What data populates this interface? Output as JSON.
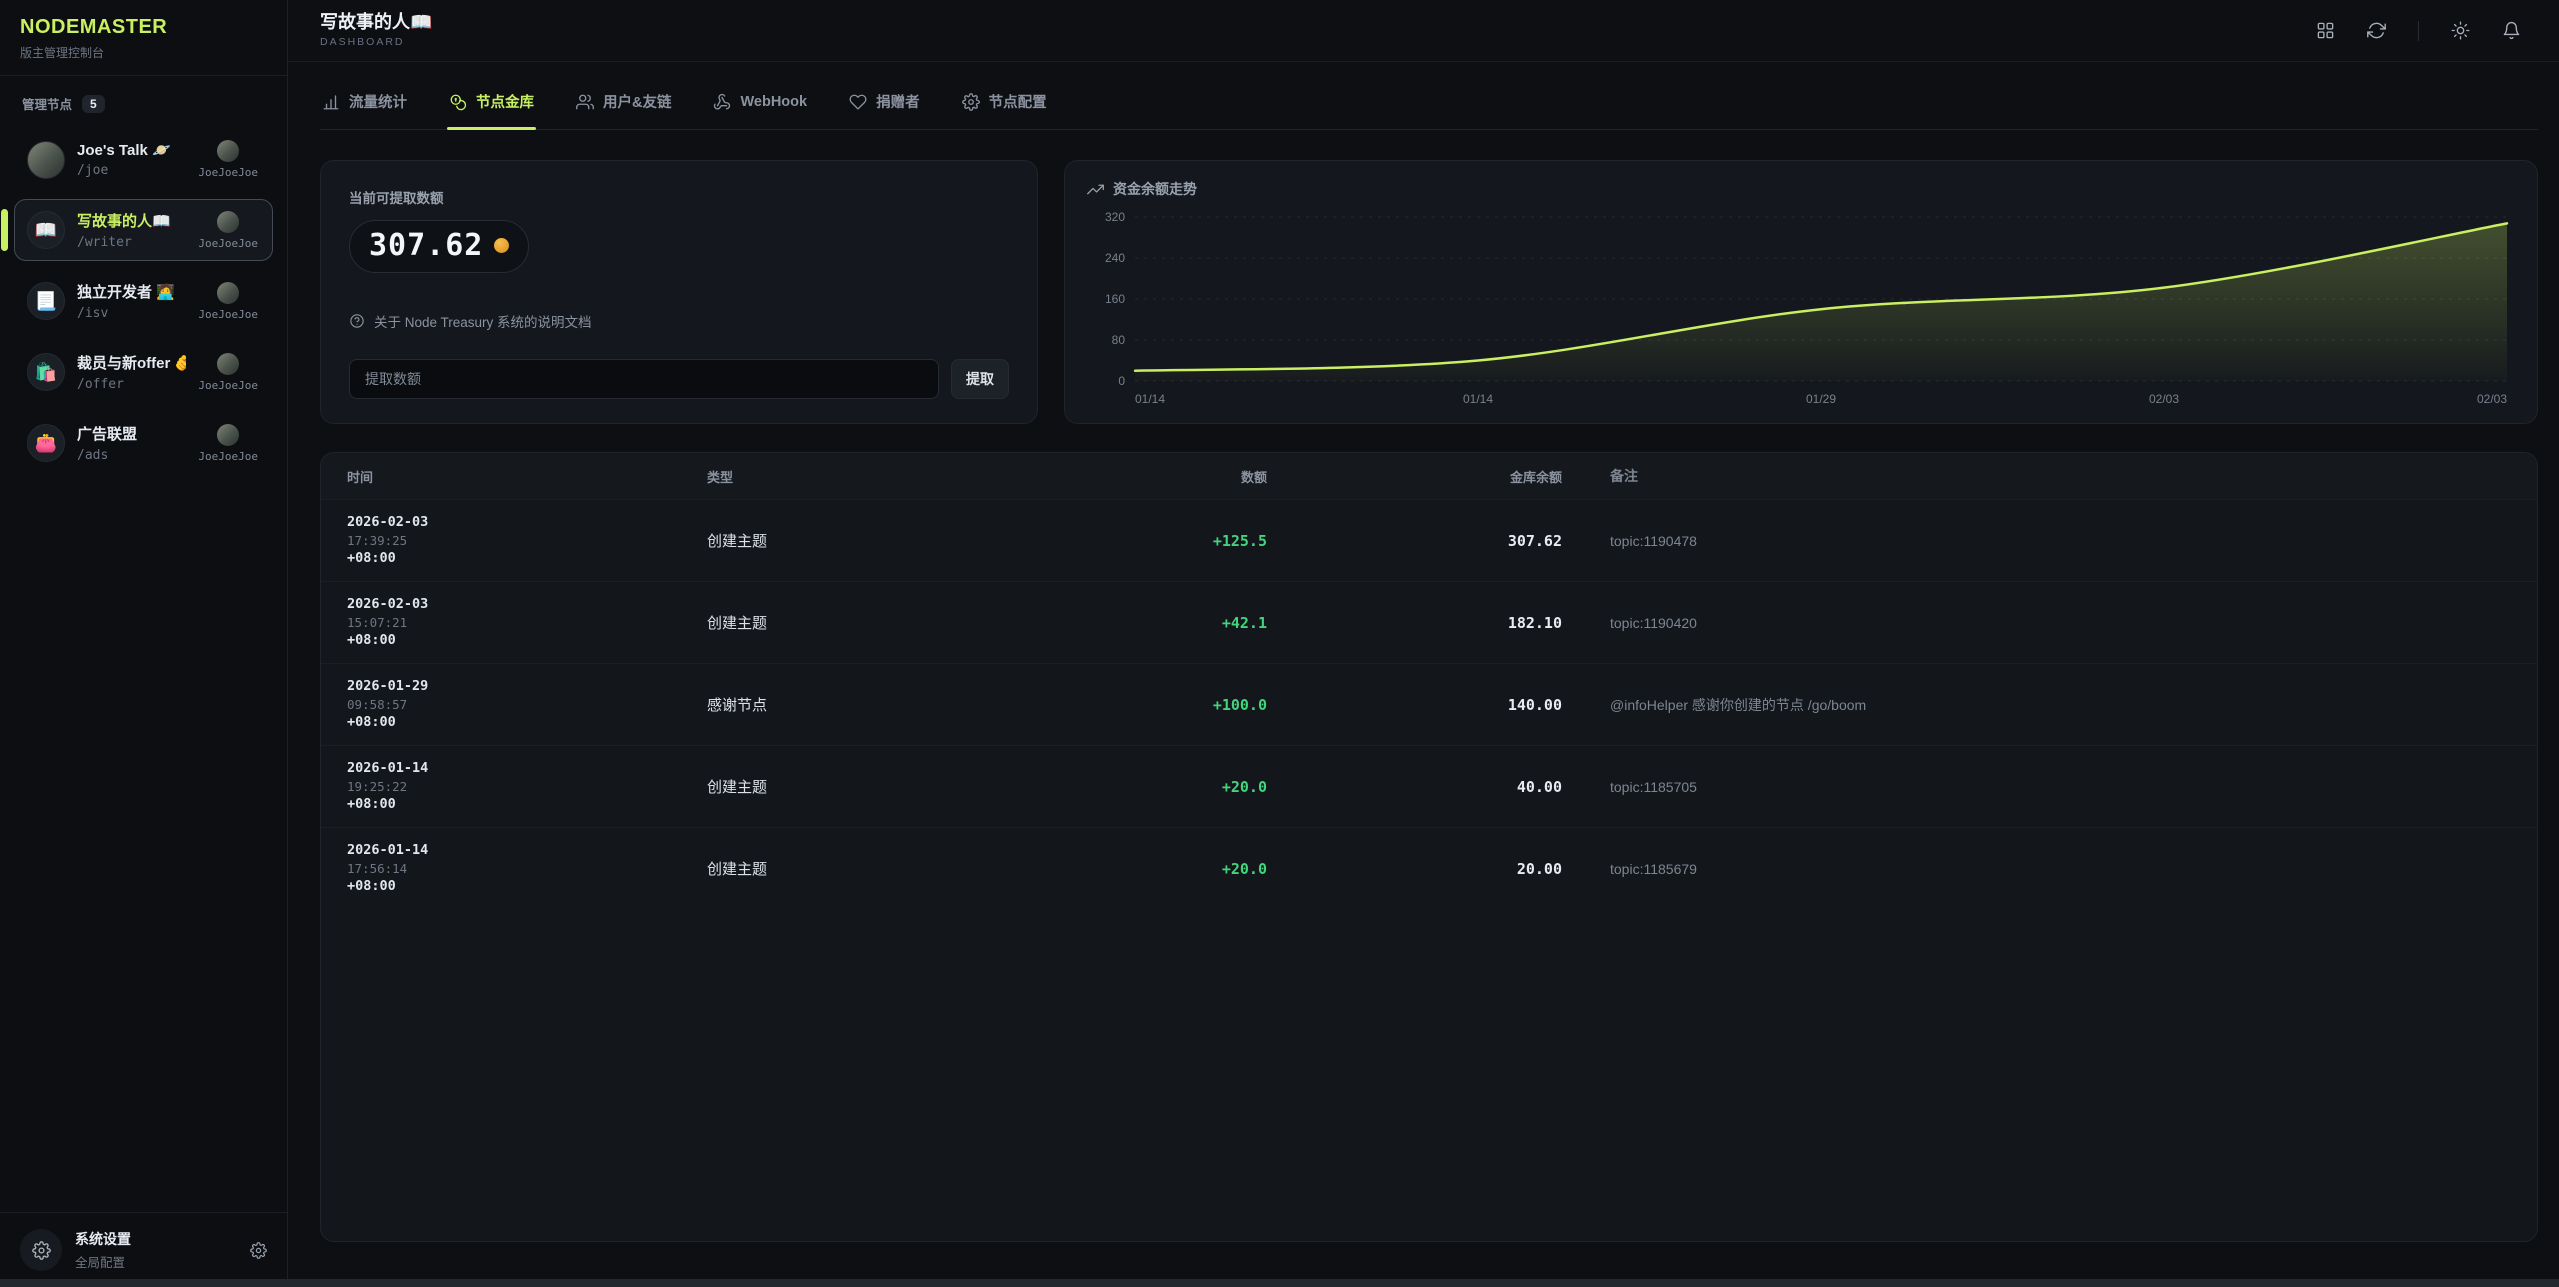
{
  "app": {
    "name": "NODEMASTER",
    "subtitle": "版主管理控制台"
  },
  "sidebar": {
    "section_label": "管理节点",
    "node_count": "5",
    "nodes": [
      {
        "title": "Joe's Talk 🪐",
        "path": "/joe",
        "owner": "JoeJoeJoe",
        "icon": "avatar",
        "active": false
      },
      {
        "title": "写故事的人📖",
        "path": "/writer",
        "owner": "JoeJoeJoe",
        "icon": "📖",
        "active": true
      },
      {
        "title": "独立开发者 🧑‍💻",
        "path": "/isv",
        "owner": "JoeJoeJoe",
        "icon": "📃",
        "active": false
      },
      {
        "title": "裁员与新offer 🫵",
        "path": "/offer",
        "owner": "JoeJoeJoe",
        "icon": "🛍️",
        "active": false
      },
      {
        "title": "广告联盟",
        "path": "/ads",
        "owner": "JoeJoeJoe",
        "icon": "👛",
        "active": false
      }
    ],
    "footer": {
      "title": "系统设置",
      "subtitle": "全局配置"
    }
  },
  "header": {
    "title": "写故事的人📖",
    "subtitle": "DASHBOARD"
  },
  "tabs": [
    {
      "label": "流量统计",
      "icon": "bar-chart",
      "active": false
    },
    {
      "label": "节点金库",
      "icon": "coins",
      "active": true
    },
    {
      "label": "用户&友链",
      "icon": "users",
      "active": false
    },
    {
      "label": "WebHook",
      "icon": "webhook",
      "active": false
    },
    {
      "label": "捐赠者",
      "icon": "heart",
      "active": false
    },
    {
      "label": "节点配置",
      "icon": "gear",
      "active": false
    }
  ],
  "treasury": {
    "label": "当前可提取数额",
    "balance": "307.62",
    "doc_link": "关于 Node Treasury 系统的说明文档",
    "input_placeholder": "提取数额",
    "withdraw_label": "提取"
  },
  "chart": {
    "title": "资金余额走势"
  },
  "chart_data": {
    "type": "area",
    "title": "资金余额走势",
    "x": [
      "01/14",
      "01/14",
      "01/29",
      "02/03",
      "02/03"
    ],
    "values": [
      20,
      40,
      140,
      182.1,
      307.62
    ],
    "yticks": [
      0,
      80,
      160,
      240,
      320
    ],
    "ylim": [
      0,
      320
    ],
    "line_color": "#c9ef62",
    "grid": "dashed-horizontal",
    "legend": "none"
  },
  "table": {
    "columns": [
      "时间",
      "类型",
      "数额",
      "金库余额",
      "备注"
    ],
    "rows": [
      {
        "date": "2026-02-03",
        "time": "17:39:25",
        "tz": "+08:00",
        "type": "创建主题",
        "amount": "+125.5",
        "balance": "307.62",
        "remark": "topic:1190478"
      },
      {
        "date": "2026-02-03",
        "time": "15:07:21",
        "tz": "+08:00",
        "type": "创建主题",
        "amount": "+42.1",
        "balance": "182.10",
        "remark": "topic:1190420"
      },
      {
        "date": "2026-01-29",
        "time": "09:58:57",
        "tz": "+08:00",
        "type": "感谢节点",
        "amount": "+100.0",
        "balance": "140.00",
        "remark": "@infoHelper 感谢你创建的节点 /go/boom"
      },
      {
        "date": "2026-01-14",
        "time": "19:25:22",
        "tz": "+08:00",
        "type": "创建主题",
        "amount": "+20.0",
        "balance": "40.00",
        "remark": "topic:1185705"
      },
      {
        "date": "2026-01-14",
        "time": "17:56:14",
        "tz": "+08:00",
        "type": "创建主题",
        "amount": "+20.0",
        "balance": "20.00",
        "remark": "topic:1185679"
      }
    ]
  },
  "colors": {
    "accent": "#c9ef62",
    "positive": "#44d47e",
    "coin": "#e8a33d",
    "background": "#0d0f13"
  }
}
